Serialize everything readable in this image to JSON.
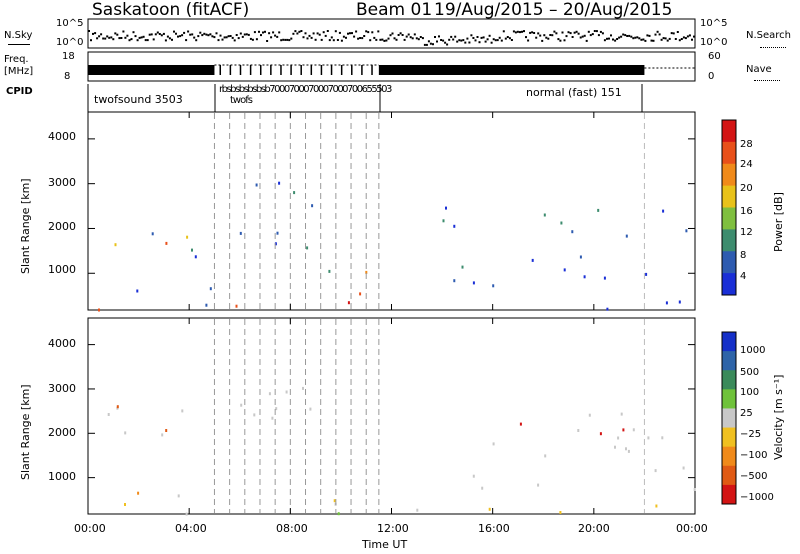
{
  "header": {
    "station": "Saskatoon (fitACF)",
    "beam": "Beam 01",
    "dates": "19/Aug/2015 – 20/Aug/2015"
  },
  "top_panels": {
    "nsky_label": "N.Sky",
    "nsky_ticks": [
      "10^5",
      "10^0"
    ],
    "nsearch_label": "N.Search",
    "nsearch_ticks": [
      "10^5",
      "10^0"
    ],
    "freq_label": "Freq.",
    "freq_unit": "[MHz]",
    "freq_ticks": [
      "18",
      "8"
    ],
    "nave_label": "Nave",
    "nave_ticks": [
      "60",
      "0"
    ],
    "cpid_label": "CPID",
    "cpid_runs": [
      {
        "label": "twofsound 3503",
        "start": 0.0,
        "end": 5.0
      },
      {
        "label": "normal (fast) 151",
        "start": 11.6,
        "end": 22.0
      }
    ],
    "cpid_clutter": "rbsbsbsbsbsb7000700070007000700655503",
    "cpid_clutter_sub": "twofs"
  },
  "colors": {
    "power": [
      "#1a2fd6",
      "#2e5bb0",
      "#3d8c6e",
      "#7fbf3f",
      "#e8c21a",
      "#f08a1a",
      "#e8501a",
      "#d31414"
    ],
    "velocity": [
      "#1530c8",
      "#2e64a8",
      "#3a8a5a",
      "#6fc23a",
      "#c8c8c8",
      "#f0c020",
      "#f08a1a",
      "#e05a14",
      "#d31414"
    ]
  },
  "chart_data": [
    {
      "type": "heatmap",
      "name": "power",
      "xlabel": "",
      "ylabel": "Slant Range [km]",
      "x_range_hours": [
        0,
        24
      ],
      "ylim": [
        180,
        4600
      ],
      "yticks": [
        1000,
        2000,
        3000,
        4000
      ],
      "colorbar": {
        "label": "Power [dB]",
        "range": [
          0,
          32
        ],
        "ticks": [
          4,
          8,
          12,
          16,
          20,
          24,
          28
        ]
      },
      "scatter_regions": [
        {
          "t0": 0.0,
          "t1": 1.2,
          "r0": 1400,
          "r1": 2400,
          "level": "mixed"
        },
        {
          "t0": 1.0,
          "t1": 4.5,
          "r0": 1400,
          "r1": 2700,
          "level": "mixed"
        },
        {
          "t0": 0.0,
          "t1": 1.0,
          "r0": 200,
          "r1": 800,
          "level": "strong"
        },
        {
          "t0": 1.5,
          "t1": 5.0,
          "r0": 200,
          "r1": 900,
          "level": "mixed"
        },
        {
          "t0": 5.0,
          "t1": 11.5,
          "r0": 200,
          "r1": 500,
          "level": "strong"
        },
        {
          "t0": 5.0,
          "t1": 9.0,
          "r0": 1500,
          "r1": 3400,
          "level": "weak"
        },
        {
          "t0": 7.5,
          "t1": 11.5,
          "r0": 500,
          "r1": 1200,
          "level": "mixed"
        },
        {
          "t0": 11.5,
          "t1": 24.0,
          "r0": 200,
          "r1": 400,
          "level": "weak"
        },
        {
          "t0": 14.0,
          "t1": 24.0,
          "r0": 700,
          "r1": 2500,
          "level": "weak"
        }
      ]
    },
    {
      "type": "heatmap",
      "name": "velocity",
      "xlabel": "Time UT",
      "ylabel": "Slant Range [km]",
      "x_range_hours": [
        0,
        24
      ],
      "xticks": [
        "00:00",
        "04:00",
        "08:00",
        "12:00",
        "16:00",
        "20:00",
        "00:00"
      ],
      "ylim": [
        180,
        4600
      ],
      "yticks": [
        1000,
        2000,
        3000,
        4000
      ],
      "colorbar": {
        "label": "Velocity [m s⁻¹]",
        "ticks": [
          "1000",
          "500",
          "100",
          "25",
          "−25",
          "−100",
          "−500",
          "−1000"
        ]
      },
      "scatter_regions": [
        {
          "t0": 0.0,
          "t1": 4.5,
          "r0": 1400,
          "r1": 2800,
          "level": "neutral"
        },
        {
          "t0": 0.0,
          "t1": 2.0,
          "r0": 200,
          "r1": 900,
          "level": "orange"
        },
        {
          "t0": 2.0,
          "t1": 11.5,
          "r0": 200,
          "r1": 700,
          "level": "green"
        },
        {
          "t0": 5.0,
          "t1": 9.0,
          "r0": 1500,
          "r1": 3400,
          "level": "neutral"
        },
        {
          "t0": 11.5,
          "t1": 24.0,
          "r0": 200,
          "r1": 500,
          "level": "yellow"
        },
        {
          "t0": 14.0,
          "t1": 24.0,
          "r0": 700,
          "r1": 2500,
          "level": "neutral"
        },
        {
          "t0": 20.5,
          "t1": 21.5,
          "r0": 1600,
          "r1": 2500,
          "level": "red"
        }
      ]
    }
  ]
}
